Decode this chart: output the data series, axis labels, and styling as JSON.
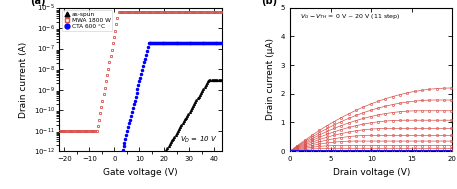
{
  "panel_a": {
    "title": "(a)",
    "xlabel": "Gate voltage (V)",
    "ylabel": "Drain current (A)",
    "xlim": [
      -22,
      43
    ],
    "ylim_log": [
      -12,
      -5
    ],
    "vd_label": "$V_D$ = 10 V",
    "legend": [
      "as-spun",
      "MWA 1800 W",
      "CTA 600 °C"
    ],
    "legend_colors": [
      "black",
      "#d9534f",
      "blue"
    ],
    "as_spun_vth": 20,
    "mwa_vth": -7,
    "cta_vth": 3,
    "as_spun_ss": 5.0,
    "mwa_ss": 1.5,
    "cta_ss": 2.0,
    "as_spun_imax": 3e-09,
    "mwa_imax": 6e-06,
    "cta_imax": 1.8e-07,
    "as_spun_ioff": 8e-13,
    "mwa_ioff": 1e-11,
    "cta_ioff": 8e-13
  },
  "panel_b": {
    "title": "(b)",
    "xlabel": "Drain voltage (V)",
    "ylabel": "Drain current (μA)",
    "xlim": [
      0,
      20
    ],
    "ylim": [
      0,
      5
    ],
    "annotation": "$V_G - V_{TH}$ = 0 V ~ 20 V (11 step)",
    "n_curves": 11,
    "vg_vth_max": 20.0,
    "k_factor": 0.011,
    "curve_color": "#d9534f",
    "blue_color": "blue"
  }
}
